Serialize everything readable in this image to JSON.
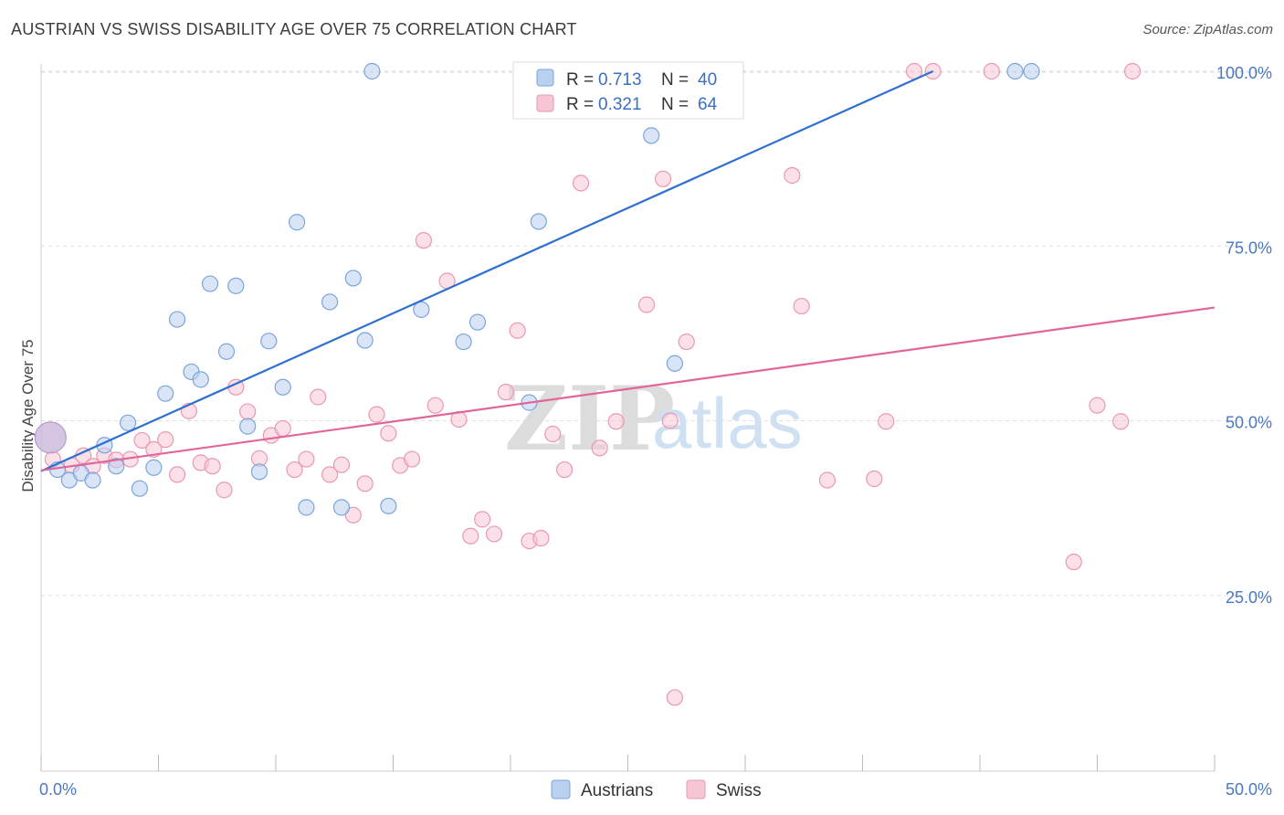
{
  "title": "AUSTRIAN VS SWISS DISABILITY AGE OVER 75 CORRELATION CHART",
  "source": "Source: ZipAtlas.com",
  "watermark": {
    "zip": "ZIP",
    "atlas": "atlas"
  },
  "colors": {
    "austrians_fill": "#b9d0ef",
    "austrians_stroke": "#7aa5dc",
    "austrians_line": "#2f6fcf",
    "swiss_fill": "#f7c6d5",
    "swiss_stroke": "#ea98b2",
    "swiss_line": "#e0669a",
    "grid": "#dddddd",
    "tick_text": "#4a78c2"
  },
  "legend": {
    "r_label": "R =",
    "n_label": "N =",
    "austrians": {
      "r": "0.713",
      "n": "40"
    },
    "swiss": {
      "r": "0.321",
      "n": "64"
    }
  },
  "chart_data": {
    "type": "scatter",
    "title": "AUSTRIAN VS SWISS DISABILITY AGE OVER 75 CORRELATION CHART",
    "xlabel": "",
    "ylabel": "Disability Age Over 75",
    "xlim": [
      0,
      50
    ],
    "ylim": [
      0,
      103
    ],
    "x_tick_labels": [
      "0.0%",
      "50.0%"
    ],
    "y_ticks": [
      25,
      50,
      75,
      100
    ],
    "y_tick_labels": [
      "25.0%",
      "50.0%",
      "75.0%",
      "100.0%"
    ],
    "grid": "horizontal dashed",
    "legend_placement": "top-center",
    "series": [
      {
        "name": "Austrians",
        "r": 0.713,
        "n": 40,
        "trend": [
          [
            0,
            42.8
          ],
          [
            38,
            100
          ]
        ],
        "points": [
          [
            0.4,
            47.6
          ],
          [
            0.7,
            43.0
          ],
          [
            1.2,
            41.5
          ],
          [
            1.7,
            42.5
          ],
          [
            2.2,
            41.5
          ],
          [
            2.7,
            46.5
          ],
          [
            3.2,
            43.5
          ],
          [
            3.7,
            49.7
          ],
          [
            4.2,
            40.3
          ],
          [
            4.8,
            43.3
          ],
          [
            5.3,
            53.9
          ],
          [
            5.8,
            64.5
          ],
          [
            6.4,
            57.0
          ],
          [
            6.8,
            55.9
          ],
          [
            7.2,
            69.6
          ],
          [
            7.9,
            59.9
          ],
          [
            8.3,
            69.3
          ],
          [
            8.8,
            49.2
          ],
          [
            9.3,
            42.7
          ],
          [
            9.7,
            61.4
          ],
          [
            10.3,
            54.8
          ],
          [
            10.9,
            78.4
          ],
          [
            11.3,
            37.6
          ],
          [
            12.3,
            67.0
          ],
          [
            12.8,
            37.6
          ],
          [
            13.3,
            70.4
          ],
          [
            13.8,
            61.5
          ],
          [
            14.1,
            100.0
          ],
          [
            14.8,
            37.8
          ],
          [
            16.2,
            65.9
          ],
          [
            18.0,
            61.3
          ],
          [
            18.6,
            64.1
          ],
          [
            20.8,
            52.6
          ],
          [
            21.2,
            78.5
          ],
          [
            24.3,
            100.0
          ],
          [
            26.0,
            90.8
          ],
          [
            27.0,
            58.2
          ],
          [
            29.6,
            100.0
          ],
          [
            41.5,
            100.0
          ],
          [
            42.2,
            100.0
          ]
        ]
      },
      {
        "name": "Swiss",
        "r": 0.321,
        "n": 64,
        "trend": [
          [
            0,
            42.9
          ],
          [
            50,
            66.2
          ]
        ],
        "points": [
          [
            0.5,
            44.5
          ],
          [
            1.3,
            43.6
          ],
          [
            1.8,
            45.0
          ],
          [
            2.2,
            43.5
          ],
          [
            2.7,
            45.0
          ],
          [
            3.2,
            44.4
          ],
          [
            3.8,
            44.5
          ],
          [
            4.3,
            47.2
          ],
          [
            4.8,
            45.9
          ],
          [
            5.3,
            47.3
          ],
          [
            5.8,
            42.3
          ],
          [
            6.3,
            51.4
          ],
          [
            6.8,
            44.0
          ],
          [
            7.3,
            43.5
          ],
          [
            7.8,
            40.1
          ],
          [
            8.3,
            54.8
          ],
          [
            8.8,
            51.3
          ],
          [
            9.3,
            44.6
          ],
          [
            9.8,
            47.9
          ],
          [
            10.3,
            48.9
          ],
          [
            10.8,
            43.0
          ],
          [
            11.3,
            44.5
          ],
          [
            11.8,
            53.4
          ],
          [
            12.3,
            42.3
          ],
          [
            12.8,
            43.7
          ],
          [
            13.3,
            36.5
          ],
          [
            13.8,
            41.0
          ],
          [
            14.3,
            50.9
          ],
          [
            14.8,
            48.2
          ],
          [
            15.3,
            43.6
          ],
          [
            15.8,
            44.5
          ],
          [
            16.3,
            75.8
          ],
          [
            16.8,
            52.2
          ],
          [
            17.3,
            70.0
          ],
          [
            17.8,
            50.2
          ],
          [
            18.3,
            33.5
          ],
          [
            18.8,
            35.9
          ],
          [
            19.3,
            33.8
          ],
          [
            19.8,
            54.1
          ],
          [
            20.3,
            62.9
          ],
          [
            20.8,
            32.8
          ],
          [
            21.3,
            33.2
          ],
          [
            21.8,
            48.1
          ],
          [
            22.3,
            43.0
          ],
          [
            23.0,
            84.0
          ],
          [
            23.8,
            46.1
          ],
          [
            24.5,
            49.9
          ],
          [
            25.8,
            66.6
          ],
          [
            26.5,
            84.6
          ],
          [
            26.8,
            50.0
          ],
          [
            27.0,
            10.4
          ],
          [
            27.5,
            61.3
          ],
          [
            32.0,
            85.1
          ],
          [
            32.4,
            66.4
          ],
          [
            33.5,
            41.5
          ],
          [
            35.5,
            41.7
          ],
          [
            36.0,
            49.9
          ],
          [
            37.2,
            100.0
          ],
          [
            38.0,
            100.0
          ],
          [
            40.5,
            100.0
          ],
          [
            44.0,
            29.8
          ],
          [
            45.0,
            52.2
          ],
          [
            46.0,
            49.9
          ],
          [
            46.5,
            100.0
          ]
        ]
      }
    ]
  }
}
